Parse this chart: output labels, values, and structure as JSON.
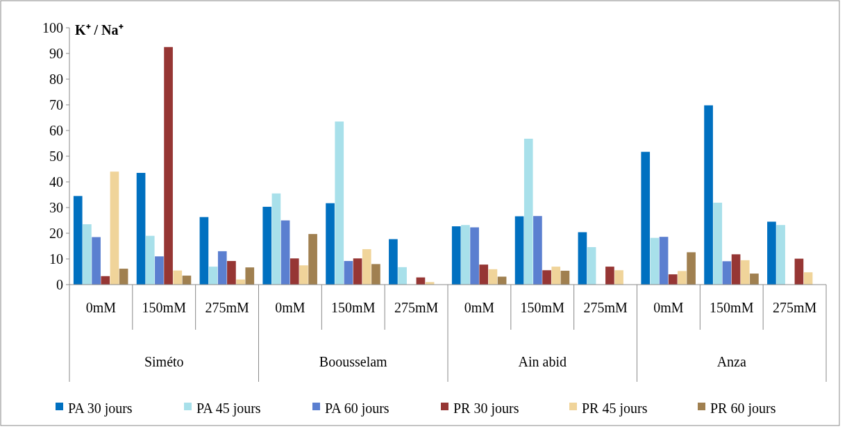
{
  "chart_data": {
    "type": "bar",
    "ylabel": "K⁺ / Na⁺",
    "categories": [
      "0mM",
      "150mM",
      "275mM",
      "0mM",
      "150mM",
      "275mM",
      "0mM",
      "150mM",
      "275mM",
      "0mM",
      "150mM",
      "275mM"
    ],
    "annotations": [
      "Siméto",
      "Boousselam",
      "Ain abid",
      "Anza"
    ],
    "series": [
      {
        "name": "PA 30 jours",
        "color": "#0070c0",
        "values": [
          34.5,
          43.5,
          26.3,
          30.3,
          31.7,
          17.7,
          22.7,
          26.6,
          20.4,
          51.7,
          69.8,
          24.5
        ]
      },
      {
        "name": "PA 45 jours",
        "color": "#a8e0ea",
        "values": [
          23.5,
          19,
          7,
          35.5,
          63.5,
          6.8,
          23.2,
          56.8,
          14.6,
          18.2,
          31.9,
          23.2
        ]
      },
      {
        "name": "PA 60 jours",
        "color": "#5b7fd0",
        "values": [
          18.5,
          11,
          13,
          25,
          9.2,
          null,
          22.3,
          26.7,
          null,
          18.6,
          9.1,
          null
        ]
      },
      {
        "name": "PR 30 jours",
        "color": "#963634",
        "values": [
          3.3,
          92.5,
          9.2,
          10.2,
          10.2,
          2.8,
          7.8,
          5.6,
          7,
          4,
          11.8,
          10.1
        ]
      },
      {
        "name": "PR 45 jours",
        "color": "#f0d49a",
        "values": [
          44,
          5.5,
          2,
          7.5,
          13.8,
          1,
          6,
          7,
          5.6,
          5.3,
          9.5,
          4.8
        ]
      },
      {
        "name": "PR 60 jours",
        "color": "#a08050",
        "values": [
          6.2,
          3.5,
          6.7,
          19.7,
          8,
          null,
          3.1,
          5.4,
          null,
          12.6,
          4.3,
          null
        ]
      }
    ],
    "ylim": [
      0,
      100
    ],
    "yticks": [
      0,
      10,
      20,
      30,
      40,
      50,
      60,
      70,
      80,
      90,
      100
    ],
    "grid": false,
    "legend": "bottom"
  }
}
